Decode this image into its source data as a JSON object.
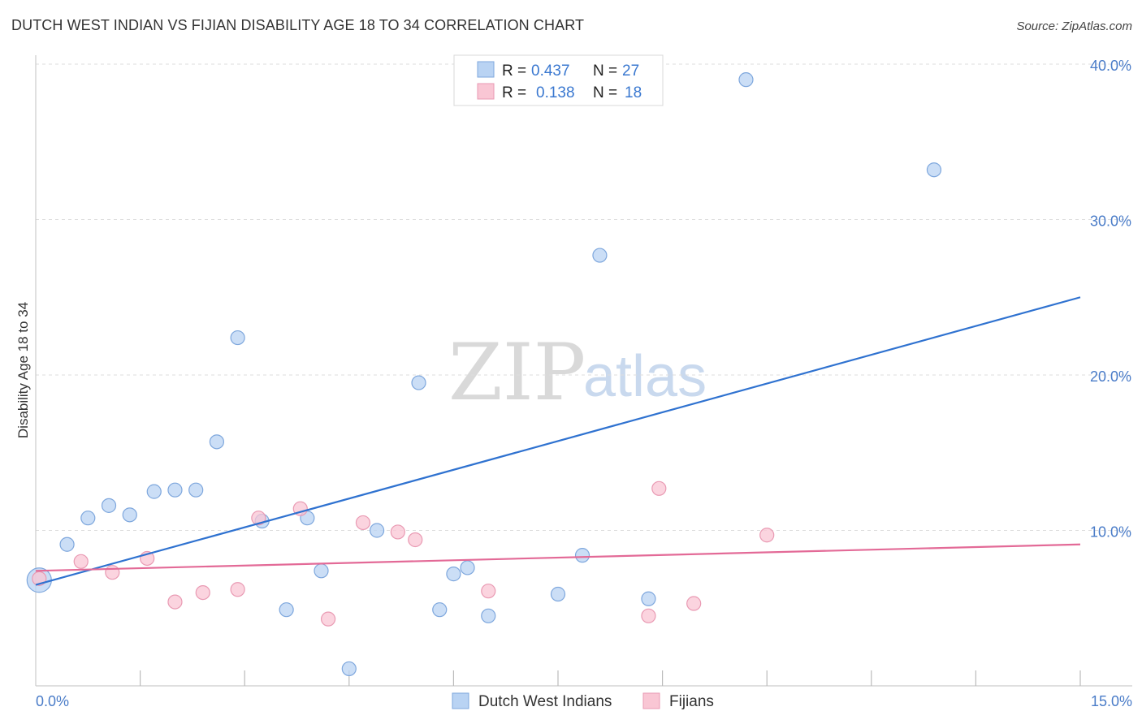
{
  "header": {
    "title": "DUTCH WEST INDIAN VS FIJIAN DISABILITY AGE 18 TO 34 CORRELATION CHART",
    "source": "Source: ZipAtlas.com"
  },
  "watermark": {
    "zip": "ZIP",
    "atlas": "atlas"
  },
  "legend": {
    "r_label": "R =",
    "n_label": "N =",
    "rows": [
      {
        "r": "0.437",
        "n": "27"
      },
      {
        "r": "0.138",
        "n": "18"
      }
    ]
  },
  "bottom_legend": [
    "Dutch West Indians",
    "Fijians"
  ],
  "colors": {
    "blue_fill": "#b9d3f3",
    "blue_stroke": "#7ea7dd",
    "blue_line": "#2f72d0",
    "pink_fill": "#f9c6d4",
    "pink_stroke": "#e99ab3",
    "pink_line": "#e36a97"
  },
  "chart_data": {
    "type": "scatter",
    "title": "DUTCH WEST INDIAN VS FIJIAN DISABILITY AGE 18 TO 34 CORRELATION CHART",
    "xlabel": "",
    "ylabel": "Disability Age 18 to 34",
    "xlim": [
      0,
      15
    ],
    "ylim": [
      0,
      40
    ],
    "y_ticks": [
      10,
      20,
      30,
      40
    ],
    "y_tick_labels": [
      "10.0%",
      "20.0%",
      "30.0%",
      "40.0%"
    ],
    "x_tick_labels": [
      "0.0%",
      "15.0%"
    ],
    "series": [
      {
        "name": "Dutch West Indians",
        "r": 0.437,
        "n": 27,
        "points": [
          [
            0.05,
            6.8
          ],
          [
            0.45,
            9.1
          ],
          [
            0.75,
            10.8
          ],
          [
            1.05,
            11.6
          ],
          [
            1.35,
            11.0
          ],
          [
            1.7,
            12.5
          ],
          [
            2.0,
            12.6
          ],
          [
            2.3,
            12.6
          ],
          [
            2.6,
            15.7
          ],
          [
            2.9,
            22.4
          ],
          [
            3.25,
            10.6
          ],
          [
            3.6,
            4.9
          ],
          [
            3.9,
            10.8
          ],
          [
            4.1,
            7.4
          ],
          [
            4.5,
            1.1
          ],
          [
            4.9,
            10.0
          ],
          [
            5.5,
            19.5
          ],
          [
            5.8,
            4.9
          ],
          [
            6.0,
            7.2
          ],
          [
            6.2,
            7.6
          ],
          [
            6.5,
            4.5
          ],
          [
            7.5,
            5.9
          ],
          [
            7.85,
            8.4
          ],
          [
            8.1,
            27.7
          ],
          [
            8.8,
            5.6
          ],
          [
            10.2,
            39.0
          ],
          [
            12.9,
            33.2
          ]
        ],
        "trend": {
          "x0": 0,
          "y0": 6.5,
          "x1": 15,
          "y1": 25.0
        }
      },
      {
        "name": "Fijians",
        "r": 0.138,
        "n": 18,
        "points": [
          [
            0.05,
            6.9
          ],
          [
            0.65,
            8.0
          ],
          [
            1.1,
            7.3
          ],
          [
            1.6,
            8.2
          ],
          [
            2.0,
            5.4
          ],
          [
            2.4,
            6.0
          ],
          [
            2.9,
            6.2
          ],
          [
            3.2,
            10.8
          ],
          [
            3.8,
            11.4
          ],
          [
            4.2,
            4.3
          ],
          [
            4.7,
            10.5
          ],
          [
            5.2,
            9.9
          ],
          [
            5.45,
            9.4
          ],
          [
            6.5,
            6.1
          ],
          [
            8.8,
            4.5
          ],
          [
            8.95,
            12.7
          ],
          [
            9.45,
            5.3
          ],
          [
            10.5,
            9.7
          ]
        ],
        "trend": {
          "x0": 0,
          "y0": 7.4,
          "x1": 15,
          "y1": 9.1
        }
      }
    ]
  }
}
